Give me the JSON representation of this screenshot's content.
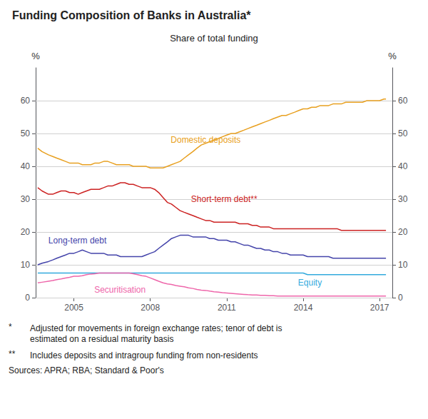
{
  "chart_data": {
    "type": "line",
    "title": "Funding Composition of Banks in Australia*",
    "subtitle": "Share of total funding",
    "ylabel": "%",
    "y2label": "%",
    "xlim": [
      2003.5,
      2017.5
    ],
    "xticks": [
      2005,
      2008,
      2011,
      2014,
      2017
    ],
    "ylim": [
      0,
      70
    ],
    "yticks": [
      0,
      10,
      20,
      30,
      40,
      50,
      60
    ],
    "y2lim": [
      0,
      70
    ],
    "y2ticks": [
      0,
      10,
      20,
      30,
      40,
      50,
      60
    ],
    "grid": true,
    "footnotes": [
      {
        "mark": "*",
        "text": "Adjusted for movements in foreign exchange rates; tenor of debt is\nestimated on a residual maturity basis"
      },
      {
        "mark": "**",
        "text": "Includes deposits and intragroup funding from non-residents"
      }
    ],
    "sources": "Sources: APRA; RBA; Standard & Poor's",
    "x": [
      2003.58,
      2003.75,
      2004.0,
      2004.17,
      2004.33,
      2004.5,
      2004.67,
      2004.83,
      2005.0,
      2005.17,
      2005.33,
      2005.5,
      2005.67,
      2005.83,
      2006.0,
      2006.17,
      2006.33,
      2006.5,
      2006.67,
      2006.83,
      2007.0,
      2007.17,
      2007.33,
      2007.5,
      2007.67,
      2007.83,
      2008.0,
      2008.17,
      2008.33,
      2008.5,
      2008.67,
      2008.83,
      2009.0,
      2009.17,
      2009.33,
      2009.5,
      2009.67,
      2009.83,
      2010.0,
      2010.17,
      2010.33,
      2010.5,
      2010.67,
      2010.83,
      2011.0,
      2011.17,
      2011.33,
      2011.5,
      2011.67,
      2011.83,
      2012.0,
      2012.17,
      2012.33,
      2012.5,
      2012.67,
      2012.83,
      2013.0,
      2013.17,
      2013.33,
      2013.5,
      2013.67,
      2013.83,
      2014.0,
      2014.17,
      2014.33,
      2014.5,
      2014.67,
      2014.83,
      2015.0,
      2015.17,
      2015.33,
      2015.5,
      2015.67,
      2015.83,
      2016.0,
      2016.17,
      2016.33,
      2016.5,
      2016.67,
      2016.83,
      2017.0,
      2017.17,
      2017.25
    ],
    "series": [
      {
        "name": "Domestic deposits",
        "color": "#E8A020",
        "label_x": 2008.8,
        "label_y": 48,
        "values": [
          45.5,
          44.5,
          43.5,
          43.0,
          42.5,
          42.0,
          41.5,
          41.0,
          41.0,
          41.0,
          40.5,
          40.5,
          40.5,
          41.0,
          41.0,
          41.5,
          41.5,
          41.0,
          40.5,
          40.5,
          40.5,
          40.5,
          40.0,
          40.0,
          40.0,
          40.0,
          39.5,
          39.5,
          39.5,
          39.5,
          40.0,
          40.5,
          41.0,
          41.5,
          42.5,
          43.5,
          44.5,
          45.5,
          46.5,
          47.0,
          47.5,
          48.0,
          48.5,
          49.0,
          49.5,
          50.0,
          50.0,
          50.5,
          51.0,
          51.5,
          52.0,
          52.5,
          53.0,
          53.5,
          54.0,
          54.5,
          55.0,
          55.5,
          55.5,
          56.0,
          56.5,
          57.0,
          57.5,
          57.5,
          58.0,
          58.0,
          58.5,
          58.5,
          58.5,
          59.0,
          59.0,
          59.0,
          59.5,
          59.5,
          59.5,
          59.5,
          59.5,
          60.0,
          60.0,
          60.0,
          60.0,
          60.5,
          60.5
        ]
      },
      {
        "name": "Short-term debt**",
        "color": "#CC2222",
        "label_x": 2009.6,
        "label_y": 30,
        "values": [
          33.5,
          32.5,
          31.5,
          31.5,
          32.0,
          32.5,
          32.5,
          32.0,
          32.0,
          31.5,
          32.0,
          32.5,
          33.0,
          33.0,
          33.0,
          33.5,
          34.0,
          34.0,
          34.5,
          35.0,
          35.0,
          34.5,
          34.5,
          34.0,
          33.5,
          33.5,
          33.5,
          33.0,
          32.0,
          30.5,
          29.0,
          28.5,
          27.5,
          26.5,
          26.0,
          25.5,
          25.0,
          24.5,
          24.0,
          23.5,
          23.5,
          23.0,
          23.0,
          23.0,
          23.0,
          23.0,
          23.0,
          22.5,
          22.5,
          22.5,
          22.0,
          22.0,
          21.5,
          21.5,
          21.5,
          21.0,
          21.0,
          21.0,
          21.0,
          21.0,
          21.0,
          21.0,
          21.0,
          21.0,
          21.0,
          21.0,
          21.0,
          21.0,
          21.0,
          21.0,
          21.0,
          20.5,
          20.5,
          20.5,
          20.5,
          20.5,
          20.5,
          20.5,
          20.5,
          20.5,
          20.5,
          20.5,
          20.5
        ]
      },
      {
        "name": "Long-term debt",
        "color": "#4444AA",
        "label_x": 2004.0,
        "label_y": 17.5,
        "values": [
          10.0,
          10.5,
          11.0,
          11.5,
          12.0,
          12.5,
          13.0,
          13.5,
          13.5,
          14.0,
          14.5,
          14.0,
          13.5,
          13.5,
          13.5,
          13.5,
          13.0,
          13.0,
          13.0,
          12.5,
          12.5,
          12.5,
          12.5,
          12.5,
          12.5,
          13.0,
          13.5,
          14.0,
          15.0,
          16.0,
          17.0,
          18.0,
          18.5,
          19.0,
          19.0,
          19.0,
          18.5,
          18.5,
          18.5,
          18.5,
          18.0,
          18.0,
          17.5,
          17.5,
          17.5,
          17.0,
          17.0,
          16.5,
          16.0,
          16.0,
          15.5,
          15.0,
          15.0,
          14.5,
          14.5,
          14.0,
          14.0,
          13.5,
          13.5,
          13.0,
          13.0,
          13.0,
          13.0,
          12.5,
          12.5,
          12.5,
          12.5,
          12.5,
          12.5,
          12.0,
          12.0,
          12.0,
          12.0,
          12.0,
          12.0,
          12.0,
          12.0,
          12.0,
          12.0,
          12.0,
          12.0,
          12.0,
          12.0
        ]
      },
      {
        "name": "Equity",
        "color": "#33AADD",
        "label_x": 2013.8,
        "label_y": 4.5,
        "values": [
          7.5,
          7.5,
          7.5,
          7.5,
          7.5,
          7.5,
          7.5,
          7.5,
          7.5,
          7.5,
          7.5,
          7.5,
          7.5,
          7.5,
          7.5,
          7.5,
          7.5,
          7.5,
          7.5,
          7.5,
          7.5,
          7.5,
          7.5,
          7.5,
          7.5,
          7.5,
          7.5,
          7.5,
          7.5,
          7.5,
          7.5,
          7.5,
          7.5,
          7.5,
          7.5,
          7.5,
          7.5,
          7.5,
          7.5,
          7.5,
          7.5,
          7.5,
          7.5,
          7.5,
          7.5,
          7.5,
          7.5,
          7.5,
          7.5,
          7.5,
          7.5,
          7.5,
          7.5,
          7.5,
          7.5,
          7.5,
          7.5,
          7.5,
          7.5,
          7.5,
          7.5,
          7.5,
          7.5,
          7.0,
          7.0,
          7.0,
          7.0,
          7.0,
          7.0,
          7.0,
          7.0,
          7.0,
          7.0,
          7.0,
          7.0,
          7.0,
          7.0,
          7.0,
          7.0,
          7.0,
          7.0,
          7.0,
          7.0
        ]
      },
      {
        "name": "Securitisation",
        "color": "#EE66AA",
        "label_x": 2005.8,
        "label_y": 2.5,
        "values": [
          4.5,
          4.7,
          5.0,
          5.2,
          5.5,
          5.7,
          6.0,
          6.2,
          6.5,
          6.5,
          6.7,
          7.0,
          7.2,
          7.3,
          7.5,
          7.5,
          7.5,
          7.5,
          7.5,
          7.5,
          7.5,
          7.5,
          7.3,
          7.0,
          6.7,
          6.5,
          6.0,
          5.5,
          5.0,
          4.5,
          4.2,
          4.0,
          3.7,
          3.5,
          3.3,
          3.0,
          2.8,
          2.5,
          2.3,
          2.2,
          2.0,
          1.8,
          1.7,
          1.5,
          1.4,
          1.3,
          1.2,
          1.1,
          1.0,
          0.9,
          0.8,
          0.8,
          0.7,
          0.7,
          0.6,
          0.6,
          0.5,
          0.5,
          0.5,
          0.5,
          0.5,
          0.5,
          0.5,
          0.5,
          0.5,
          0.5,
          0.5,
          0.5,
          0.5,
          0.5,
          0.5,
          0.5,
          0.5,
          0.5,
          0.5,
          0.5,
          0.5,
          0.5,
          0.5,
          0.5,
          0.5,
          0.5,
          0.5
        ]
      }
    ]
  }
}
